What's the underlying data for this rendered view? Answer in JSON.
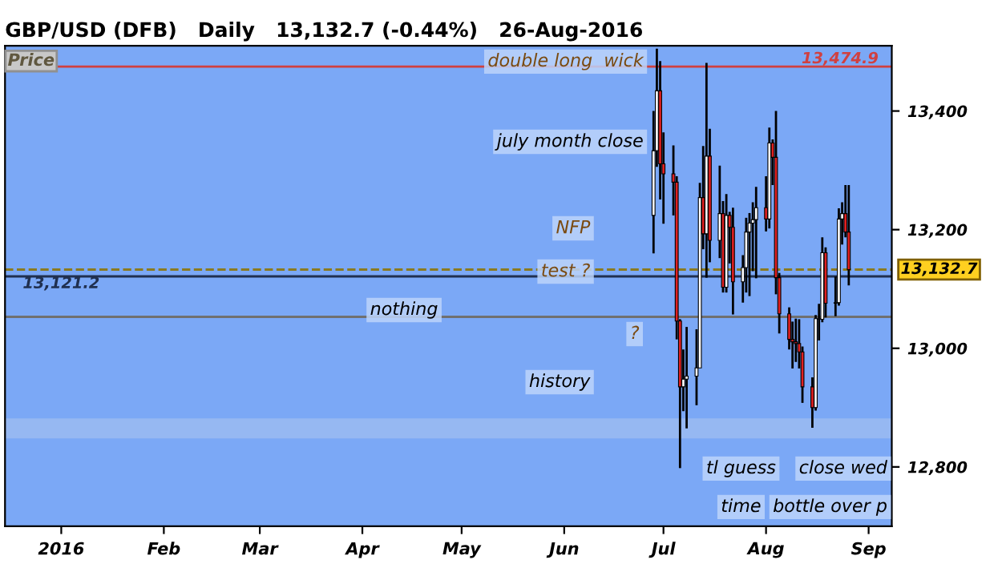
{
  "chart_data": {
    "type": "candlestick",
    "title": "GBP/USD (DFB)   Daily   13,132.7 (-0.44%)   26-Aug-2016",
    "x": [
      "2016-06-28",
      "2016-06-29",
      "2016-06-30",
      "2016-07-01",
      "2016-07-04",
      "2016-07-05",
      "2016-07-06",
      "2016-07-07",
      "2016-07-08",
      "2016-07-11",
      "2016-07-12",
      "2016-07-13",
      "2016-07-14",
      "2016-07-15",
      "2016-07-18",
      "2016-07-19",
      "2016-07-20",
      "2016-07-21",
      "2016-07-22",
      "2016-07-25",
      "2016-07-26",
      "2016-07-27",
      "2016-07-28",
      "2016-07-29",
      "2016-08-01",
      "2016-08-02",
      "2016-08-03",
      "2016-08-04",
      "2016-08-05",
      "2016-08-08",
      "2016-08-09",
      "2016-08-10",
      "2016-08-11",
      "2016-08-12",
      "2016-08-15",
      "2016-08-16",
      "2016-08-17",
      "2016-08-18",
      "2016-08-19",
      "2016-08-22",
      "2016-08-23",
      "2016-08-24",
      "2016-08-25",
      "2016-08-26"
    ],
    "ohlc": [
      [
        13224,
        13400,
        13160,
        13333
      ],
      [
        13333,
        13505,
        13306,
        13434
      ],
      [
        13434,
        13484,
        13251,
        13311
      ],
      [
        13311,
        13364,
        13210,
        13294
      ],
      [
        13294,
        13342,
        13224,
        13280
      ],
      [
        13280,
        13290,
        13015,
        13046
      ],
      [
        13046,
        13049,
        12798,
        12935
      ],
      [
        12935,
        12998,
        12894,
        12948
      ],
      [
        12948,
        13036,
        12865,
        12953
      ],
      [
        12953,
        13032,
        12904,
        12967
      ],
      [
        12967,
        13279,
        12967,
        13254
      ],
      [
        13254,
        13341,
        13167,
        13193
      ],
      [
        13193,
        13481,
        13119,
        13324
      ],
      [
        13324,
        13370,
        13145,
        13182
      ],
      [
        13182,
        13308,
        13152,
        13227
      ],
      [
        13227,
        13248,
        13094,
        13103
      ],
      [
        13103,
        13260,
        13094,
        13224
      ],
      [
        13224,
        13230,
        13143,
        13204
      ],
      [
        13204,
        13237,
        13057,
        13112
      ],
      [
        13112,
        13157,
        13077,
        13136
      ],
      [
        13136,
        13220,
        13094,
        13196
      ],
      [
        13196,
        13228,
        13088,
        13211
      ],
      [
        13211,
        13246,
        13130,
        13217
      ],
      [
        13217,
        13272,
        13118,
        13237
      ],
      [
        13237,
        13290,
        13197,
        13218
      ],
      [
        13218,
        13372,
        13202,
        13346
      ],
      [
        13346,
        13352,
        13275,
        13322
      ],
      [
        13322,
        13400,
        13091,
        13119
      ],
      [
        13119,
        13127,
        13025,
        13058
      ],
      [
        13058,
        13069,
        12998,
        13015
      ],
      [
        13015,
        13045,
        12966,
        13011
      ],
      [
        13011,
        13050,
        12977,
        13008
      ],
      [
        13008,
        13049,
        12966,
        12994
      ],
      [
        12994,
        13003,
        12908,
        12935
      ],
      [
        12935,
        12951,
        12866,
        12900
      ],
      [
        12900,
        13056,
        12895,
        13050
      ],
      [
        13050,
        13075,
        13013,
        13049
      ],
      [
        13049,
        13187,
        13044,
        13161
      ],
      [
        13161,
        13170,
        13052,
        13076
      ],
      [
        13076,
        13121,
        13054,
        13077
      ],
      [
        13077,
        13236,
        13072,
        13218
      ],
      [
        13218,
        13246,
        13175,
        13227
      ],
      [
        13227,
        13275,
        13187,
        13196
      ],
      [
        13196,
        13275,
        13106,
        13132.7
      ]
    ],
    "xlim": [
      "2015-12-15",
      "2016-09-08"
    ],
    "xticks": [
      {
        "value": "2016-01-01",
        "label": "2016"
      },
      {
        "value": "2016-02-01",
        "label": "Feb"
      },
      {
        "value": "2016-03-01",
        "label": "Mar"
      },
      {
        "value": "2016-04-01",
        "label": "Apr"
      },
      {
        "value": "2016-05-01",
        "label": "May"
      },
      {
        "value": "2016-06-01",
        "label": "Jun"
      },
      {
        "value": "2016-07-01",
        "label": "Jul"
      },
      {
        "value": "2016-08-01",
        "label": "Aug"
      },
      {
        "value": "2016-09-01",
        "label": "Sep"
      }
    ],
    "ylim": [
      12700,
      13510
    ],
    "yticks": [
      {
        "value": 12800,
        "label": "12,800"
      },
      {
        "value": 13000,
        "label": "13,000"
      },
      {
        "value": 13200,
        "label": "13,200"
      },
      {
        "value": 13400,
        "label": "13,400"
      }
    ],
    "grid": false,
    "ref_lines": [
      {
        "axis": "y",
        "value": 13474.9,
        "label": "13,474.9",
        "color": "#d04040",
        "line_style": "solid"
      },
      {
        "axis": "y",
        "value": 13132.7,
        "label": "13,132.7",
        "color": "#8a7a20",
        "line_style": "dashed"
      },
      {
        "axis": "y",
        "value": 13121.2,
        "label": "13,121.2",
        "color": "#203050",
        "line_style": "solid"
      },
      {
        "axis": "y",
        "value": 13053,
        "color": "#707070",
        "line_style": "solid"
      }
    ],
    "bands": [
      {
        "axis": "y",
        "from": 12850,
        "to": 12880,
        "color": "#a8c4f0"
      }
    ],
    "annotations": [
      "Price",
      "double long  wick",
      "july month close",
      "close wed",
      "NFP",
      "test ?",
      "history",
      "bottle over p",
      "?",
      "nothing",
      "tl guess",
      "time"
    ]
  }
}
